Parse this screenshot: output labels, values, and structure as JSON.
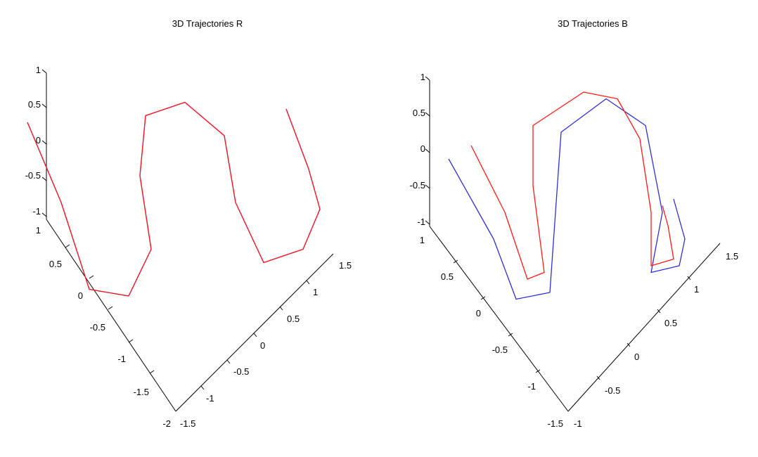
{
  "colors": {
    "reference": "#2f2fd8",
    "measured": "#ff1a1a",
    "axis": "#000000"
  },
  "chart_data": [
    {
      "type": "line",
      "title": "3D Trajectories R",
      "grid": false,
      "legend": "none",
      "axes": {
        "vertical": {
          "range": [
            -1,
            1
          ],
          "ticks": [
            "1",
            "0.5",
            "0",
            "-0.5",
            "-1"
          ]
        },
        "left_depth": {
          "range": [
            -2,
            1
          ],
          "ticks": [
            "1",
            "0.5",
            "0",
            "-0.5",
            "-1",
            "-1.5",
            "-2"
          ]
        },
        "right_depth": {
          "range": [
            -1.5,
            1.5
          ],
          "ticks": [
            "-1.5",
            "-1",
            "-0.5",
            "0",
            "0.5",
            "1",
            "1.5"
          ]
        }
      },
      "series": [
        {
          "color": "#2f2fd8",
          "points": [
            [
              -1.6,
              0.4
            ],
            [
              -1.3,
              -0.2
            ],
            [
              -1.05,
              -0.85
            ],
            [
              -0.7,
              -0.9
            ],
            [
              -0.5,
              -0.55
            ],
            [
              -0.6,
              0.0
            ],
            [
              -0.55,
              0.45
            ],
            [
              -0.2,
              0.55
            ],
            [
              0.15,
              0.3
            ],
            [
              0.25,
              -0.2
            ],
            [
              0.5,
              -0.65
            ],
            [
              0.85,
              -0.55
            ],
            [
              1.0,
              -0.25
            ],
            [
              0.9,
              0.05
            ],
            [
              0.7,
              0.5
            ]
          ]
        },
        {
          "color": "#ff1a1a",
          "points": [
            [
              -1.6,
              0.4
            ],
            [
              -1.3,
              -0.2
            ],
            [
              -1.05,
              -0.85
            ],
            [
              -0.7,
              -0.9
            ],
            [
              -0.5,
              -0.55
            ],
            [
              -0.6,
              0.0
            ],
            [
              -0.55,
              0.45
            ],
            [
              -0.2,
              0.55
            ],
            [
              0.15,
              0.3
            ],
            [
              0.25,
              -0.2
            ],
            [
              0.5,
              -0.65
            ],
            [
              0.85,
              -0.55
            ],
            [
              1.0,
              -0.25
            ],
            [
              0.9,
              0.05
            ],
            [
              0.7,
              0.5
            ]
          ]
        }
      ]
    },
    {
      "type": "line",
      "title": "3D Trajectories B",
      "grid": false,
      "legend": "none",
      "axes": {
        "vertical": {
          "range": [
            -1,
            1
          ],
          "ticks": [
            "1",
            "0.5",
            "0",
            "-0.5",
            "-1"
          ]
        },
        "left_depth": {
          "range": [
            -1.5,
            1
          ],
          "ticks": [
            "1",
            "0.5",
            "0",
            "-0.5",
            "-1",
            "-1.5"
          ]
        },
        "right_depth": {
          "range": [
            -1,
            1.5
          ],
          "ticks": [
            "-1",
            "-0.5",
            "0",
            "0.5",
            "1",
            "1.5"
          ]
        }
      },
      "series": [
        {
          "color": "#2f2fd8",
          "points": [
            [
              -1.2,
              0.1
            ],
            [
              -0.8,
              -0.5
            ],
            [
              -0.6,
              -0.95
            ],
            [
              -0.3,
              -0.9
            ],
            [
              -0.25,
              -0.3
            ],
            [
              -0.2,
              0.3
            ],
            [
              0.2,
              0.55
            ],
            [
              0.55,
              0.35
            ],
            [
              0.7,
              -0.3
            ],
            [
              0.6,
              -0.75
            ],
            [
              0.85,
              -0.7
            ],
            [
              0.9,
              -0.5
            ],
            [
              0.8,
              -0.2
            ]
          ]
        },
        {
          "color": "#ff1a1a",
          "points": [
            [
              -1.0,
              0.2
            ],
            [
              -0.7,
              -0.3
            ],
            [
              -0.5,
              -0.8
            ],
            [
              -0.35,
              -0.75
            ],
            [
              -0.45,
              -0.1
            ],
            [
              -0.45,
              0.35
            ],
            [
              0.0,
              0.6
            ],
            [
              0.3,
              0.55
            ],
            [
              0.5,
              0.25
            ],
            [
              0.6,
              -0.3
            ],
            [
              0.6,
              -0.7
            ],
            [
              0.8,
              -0.65
            ],
            [
              0.75,
              -0.4
            ],
            [
              0.7,
              -0.25
            ]
          ]
        }
      ]
    }
  ]
}
